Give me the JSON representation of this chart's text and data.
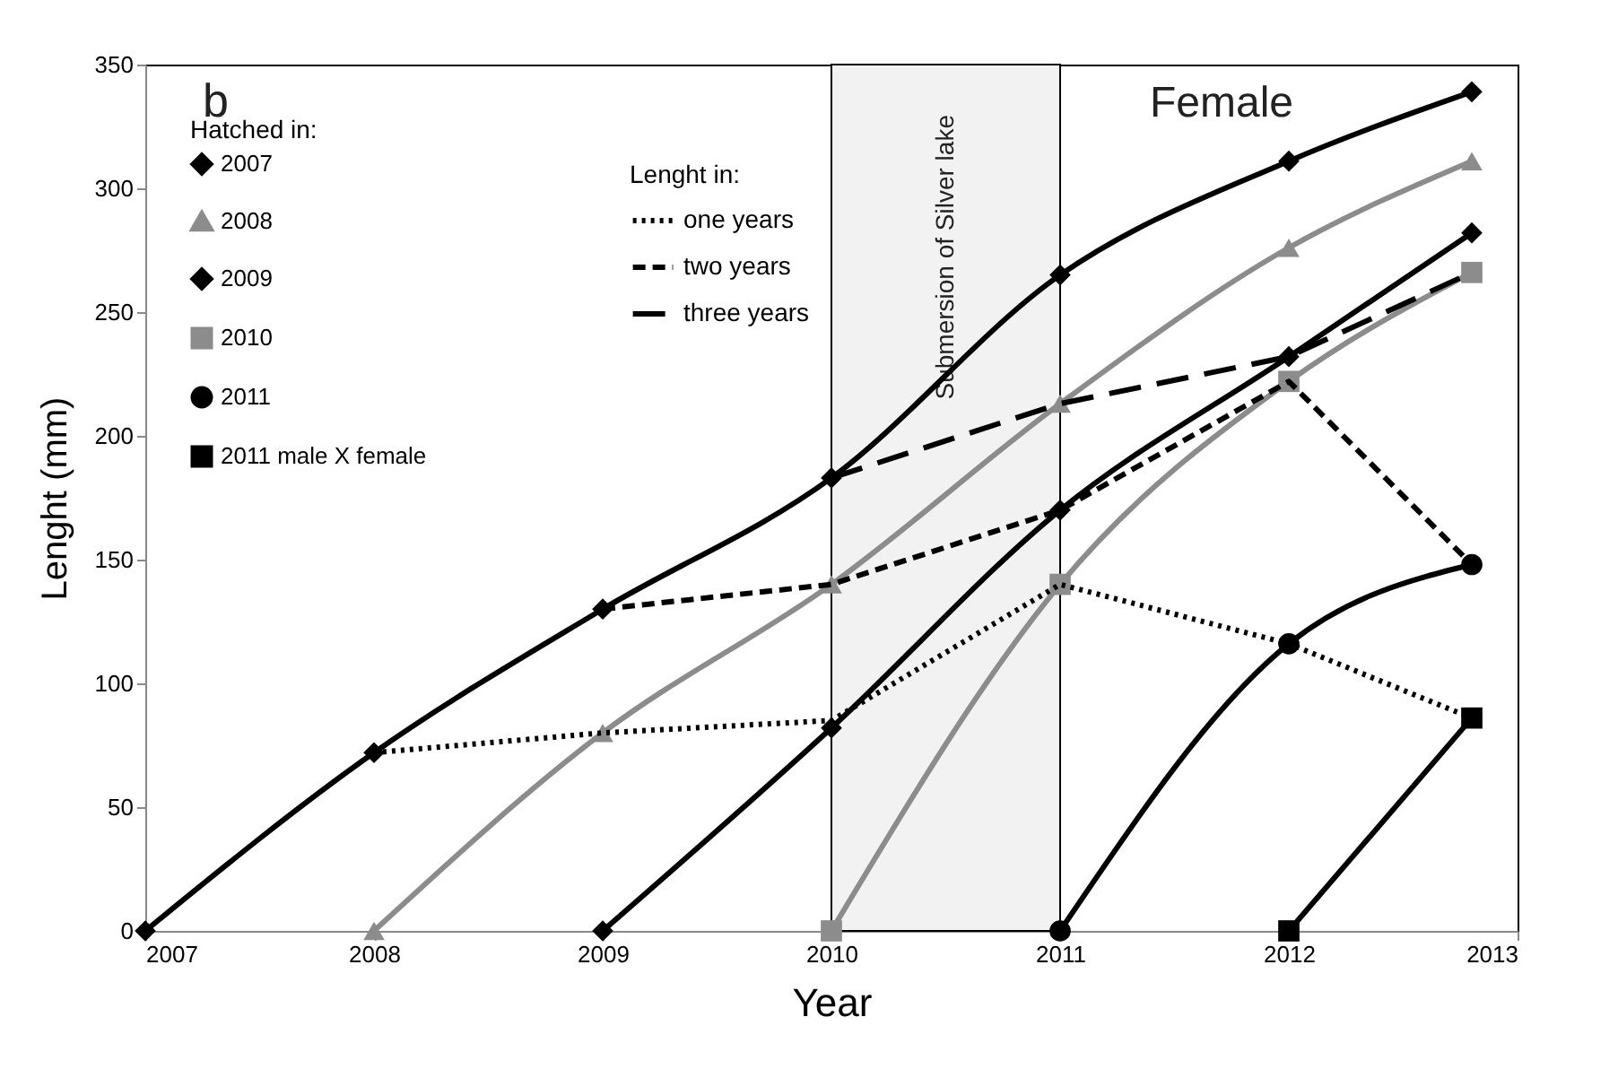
{
  "chart_data": {
    "type": "line",
    "xlabel": "Year",
    "ylabel": "Lenght (mm)",
    "xlim": [
      2007,
      2013
    ],
    "xticks": [
      2007,
      2008,
      2009,
      2010,
      2011,
      2012,
      2013
    ],
    "ylim": [
      0,
      350
    ],
    "yticks": [
      0,
      50,
      100,
      150,
      200,
      250,
      300,
      350
    ],
    "grid": false,
    "legend": "top left",
    "legend_title": [
      "Hatched in:",
      "Lenght in:"
    ],
    "annotations": [
      "b",
      "Female"
    ],
    "bands": [
      {
        "axis": "x",
        "from": 2010,
        "to": 2011,
        "label": "Submersion of Silver lake",
        "color": "#f2f2f2"
      }
    ],
    "series": [
      {
        "name": "2007",
        "color": "#000000",
        "marker": "diamond",
        "line_style": "solid",
        "x": [
          2007,
          2008,
          2009,
          2010,
          2011,
          2012,
          2012.8
        ],
        "values": [
          0,
          72,
          130,
          183,
          265,
          311,
          339
        ]
      },
      {
        "name": "2008",
        "color": "#8c8c8c",
        "marker": "triangle",
        "line_style": "solid",
        "x": [
          2008,
          2009,
          2010,
          2011,
          2012,
          2012.8
        ],
        "values": [
          0,
          80,
          140,
          213,
          276,
          311
        ]
      },
      {
        "name": "2009",
        "color": "#000000",
        "marker": "diamond",
        "line_style": "solid",
        "x": [
          2009,
          2010,
          2011,
          2012,
          2012.8
        ],
        "values": [
          0,
          82,
          170,
          232,
          282
        ]
      },
      {
        "name": "2010",
        "color": "#8c8c8c",
        "marker": "square",
        "line_style": "solid",
        "x": [
          2010,
          2011,
          2012,
          2012.8
        ],
        "values": [
          0,
          140,
          222,
          266
        ]
      },
      {
        "name": "2011",
        "color": "#000000",
        "marker": "circle",
        "line_style": "solid",
        "x": [
          2011,
          2012,
          2012.8
        ],
        "values": [
          0,
          116,
          148
        ]
      },
      {
        "name": "2011 male X female",
        "color": "#000000",
        "marker": "square",
        "line_style": "solid",
        "x": [
          2012,
          2012.8
        ],
        "values": [
          0,
          86
        ]
      },
      {
        "name": "one years",
        "color": "#000000",
        "marker": "none",
        "line_style": "dotted",
        "x": [
          2008,
          2009,
          2010,
          2011,
          2012,
          2012.8
        ],
        "values": [
          72,
          80,
          85,
          140,
          116,
          86
        ]
      },
      {
        "name": "two years",
        "color": "#000000",
        "marker": "none",
        "line_style": "dashed",
        "x": [
          2009,
          2010,
          2011,
          2012,
          2012.8
        ],
        "values": [
          130,
          140,
          170,
          222,
          148
        ]
      },
      {
        "name": "three years",
        "color": "#000000",
        "marker": "none",
        "line_style": "longdashed",
        "x": [
          2010,
          2011,
          2012,
          2012.8
        ],
        "values": [
          183,
          213,
          232,
          266
        ]
      }
    ]
  }
}
